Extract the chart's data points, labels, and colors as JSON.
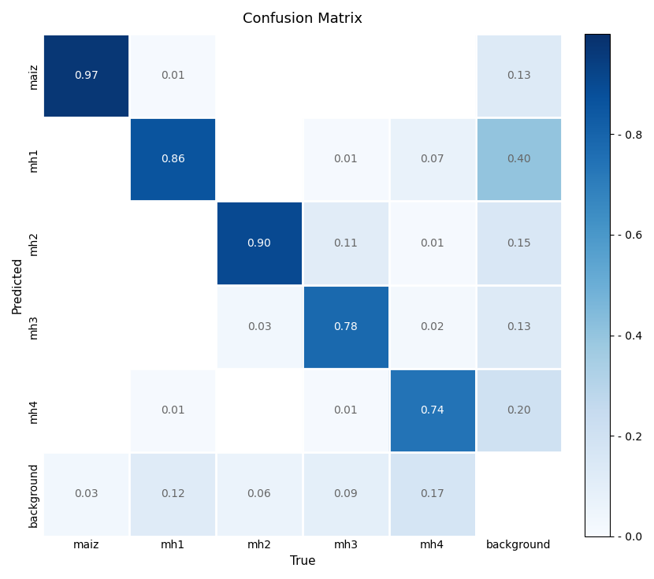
{
  "title": "Confusion Matrix",
  "xlabel": "True",
  "ylabel": "Predicted",
  "classes": [
    "maiz",
    "mh1",
    "mh2",
    "mh3",
    "mh4",
    "background"
  ],
  "matrix": [
    [
      0.97,
      0.01,
      0.0,
      0.0,
      0.0,
      0.13
    ],
    [
      0.0,
      0.86,
      0.0,
      0.01,
      0.07,
      0.4
    ],
    [
      0.0,
      0.0,
      0.9,
      0.11,
      0.01,
      0.15
    ],
    [
      0.0,
      0.0,
      0.03,
      0.78,
      0.02,
      0.13
    ],
    [
      0.0,
      0.01,
      0.0,
      0.01,
      0.74,
      0.2
    ],
    [
      0.03,
      0.12,
      0.06,
      0.09,
      0.17,
      0.0
    ]
  ],
  "show_zeros": false,
  "cmap": "Blues",
  "vmin": 0.0,
  "vmax": 1.0,
  "text_threshold": 0.5,
  "text_color_high": "#ffffff",
  "text_color_low": "#666666",
  "figsize": [
    8.3,
    7.35
  ],
  "dpi": 100,
  "title_fontsize": 13,
  "label_fontsize": 11,
  "tick_fontsize": 10,
  "annot_fontsize": 10,
  "colorbar_ticks": [
    0.0,
    0.2,
    0.4,
    0.6,
    0.8
  ]
}
